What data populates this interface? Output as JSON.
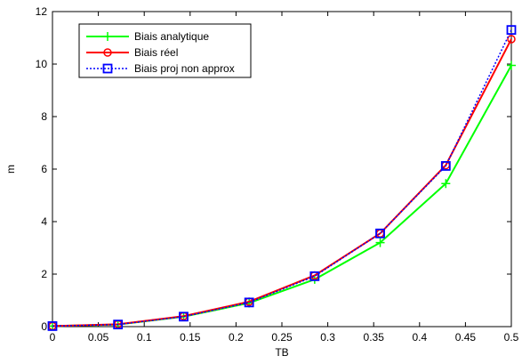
{
  "chart_data": {
    "type": "line",
    "title": "",
    "xlabel": "TB",
    "ylabel": "m",
    "xlim": [
      0,
      0.5
    ],
    "ylim": [
      0,
      12
    ],
    "x_ticks": [
      "0",
      "0.05",
      "0.1",
      "0.15",
      "0.2",
      "0.25",
      "0.3",
      "0.35",
      "0.4",
      "0.45",
      "0.5"
    ],
    "y_ticks": [
      "0",
      "2",
      "4",
      "6",
      "8",
      "10",
      "12"
    ],
    "grid": true,
    "legend_position": "top-left",
    "series": [
      {
        "name": "Biais analytique",
        "color": "#00ff00",
        "marker": "plus",
        "line_style": "solid",
        "x": [
          0,
          0.0714,
          0.1429,
          0.2143,
          0.2857,
          0.3571,
          0.4286,
          0.5
        ],
        "y": [
          0.02,
          0.08,
          0.38,
          0.9,
          1.8,
          3.2,
          5.45,
          9.95
        ]
      },
      {
        "name": "Biais réel",
        "color": "#ff0000",
        "marker": "circle",
        "line_style": "solid",
        "x": [
          0,
          0.0714,
          0.1429,
          0.2143,
          0.2857,
          0.3571,
          0.4286,
          0.5
        ],
        "y": [
          0.02,
          0.09,
          0.4,
          0.95,
          1.95,
          3.55,
          6.15,
          10.95
        ]
      },
      {
        "name": "Biais proj non approx",
        "color": "#0000ff",
        "marker": "square",
        "line_style": "dotted",
        "x": [
          0,
          0.0714,
          0.1429,
          0.2143,
          0.2857,
          0.3571,
          0.4286,
          0.5
        ],
        "y": [
          0.02,
          0.08,
          0.38,
          0.92,
          1.92,
          3.55,
          6.12,
          11.3
        ]
      }
    ]
  }
}
